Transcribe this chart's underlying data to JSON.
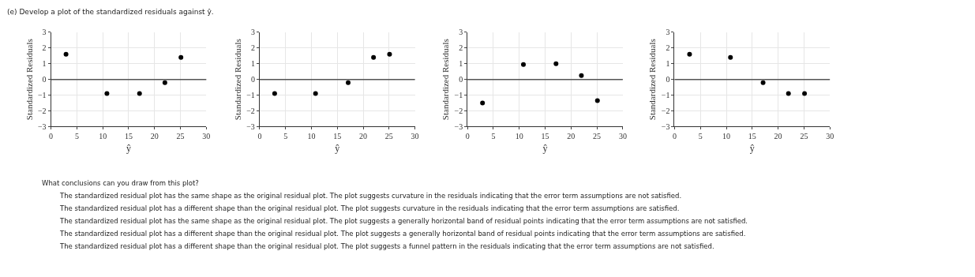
{
  "chart_data": [
    {
      "type": "scatter",
      "title": "(e) Develop a plot of the standardized residuals against ŷ.",
      "xlabel": "ŷ",
      "ylabel": "Standardized Residuals",
      "x": [
        2.9,
        10.8,
        17.1,
        22,
        25.1
      ],
      "values": [
        1.6,
        -0.9,
        -0.9,
        -0.2,
        1.4
      ],
      "color": "#000000",
      "marker": "circle",
      "xlim": [
        0,
        30
      ],
      "xticks": [
        0,
        5,
        10,
        15,
        20,
        25,
        30
      ],
      "ylim": [
        -3,
        3
      ],
      "yticks": [
        {
          "value": -3,
          "label": "−3"
        },
        {
          "value": -2,
          "label": "−2"
        },
        {
          "value": -1,
          "label": "−1"
        },
        0,
        1,
        2,
        3
      ],
      "ref_lines": [
        {
          "axis": "y",
          "value": 0,
          "color": "#555555"
        }
      ],
      "grid": true
    },
    {
      "type": "scatter",
      "xlabel": "ŷ",
      "ylabel": "Standardized Residuals",
      "x": [
        2.9,
        10.8,
        17.1,
        22,
        25.1
      ],
      "values": [
        -0.9,
        -0.9,
        -0.2,
        1.4,
        1.6
      ],
      "color": "#000000",
      "marker": "circle",
      "xlim": [
        0,
        30
      ],
      "xticks": [
        0,
        5,
        10,
        15,
        20,
        25,
        30
      ],
      "ylim": [
        -3,
        3
      ],
      "yticks": [
        {
          "value": -3,
          "label": "−3"
        },
        {
          "value": -2,
          "label": "−2"
        },
        {
          "value": -1,
          "label": "−1"
        },
        0,
        1,
        2,
        3
      ],
      "ref_lines": [
        {
          "axis": "y",
          "value": 0,
          "color": "#555555"
        }
      ],
      "grid": true
    },
    {
      "type": "scatter",
      "xlabel": "ŷ",
      "ylabel": "Standardized Residuals",
      "x": [
        2.9,
        10.8,
        17.1,
        22,
        25.1
      ],
      "values": [
        -1.5,
        0.95,
        1.0,
        0.25,
        -1.35
      ],
      "color": "#000000",
      "marker": "circle",
      "xlim": [
        0,
        30
      ],
      "xticks": [
        0,
        5,
        10,
        15,
        20,
        25,
        30
      ],
      "ylim": [
        -3,
        3
      ],
      "yticks": [
        {
          "value": -3,
          "label": "−3"
        },
        {
          "value": -2,
          "label": "−2"
        },
        {
          "value": -1,
          "label": "−1"
        },
        0,
        1,
        2,
        3
      ],
      "ref_lines": [
        {
          "axis": "y",
          "value": 0,
          "color": "#555555"
        }
      ],
      "grid": true
    },
    {
      "type": "scatter",
      "xlabel": "ŷ",
      "ylabel": "Standardized Residuals",
      "x": [
        2.9,
        10.8,
        17.1,
        22,
        25.1
      ],
      "values": [
        1.6,
        1.4,
        -0.2,
        -0.9,
        -0.9
      ],
      "color": "#000000",
      "marker": "circle",
      "xlim": [
        0,
        30
      ],
      "xticks": [
        0,
        5,
        10,
        15,
        20,
        25,
        30
      ],
      "ylim": [
        -3,
        3
      ],
      "yticks": [
        {
          "value": -3,
          "label": "−3"
        },
        {
          "value": -2,
          "label": "−2"
        },
        {
          "value": -1,
          "label": "−1"
        },
        0,
        1,
        2,
        3
      ],
      "ref_lines": [
        {
          "axis": "y",
          "value": 0,
          "color": "#555555"
        }
      ],
      "grid": true
    },
    {
      "type": "other",
      "title": "What conclusions can you draw from this plot?",
      "annotations": [
        "The standardized residual plot has the same shape as the original residual plot. The plot suggests curvature in the residuals indicating that the error term assumptions are not satisfied.",
        "The standardized residual plot has a different shape than the original residual plot. The plot suggests curvature in the residuals indicating that the error term assumptions are satisfied.",
        "The standardized residual plot has the same shape as the original residual plot. The plot suggests a generally horizontal band of residual points indicating that the error term assumptions are not satisfied.",
        "The standardized residual plot has a different shape than the original residual plot. The plot suggests a generally horizontal band of residual points indicating that the error term assumptions are satisfied.",
        "The standardized residual plot has a different shape than the original residual plot. The plot suggests a funnel pattern in the residuals indicating that the error term assumptions are not satisfied."
      ]
    }
  ]
}
